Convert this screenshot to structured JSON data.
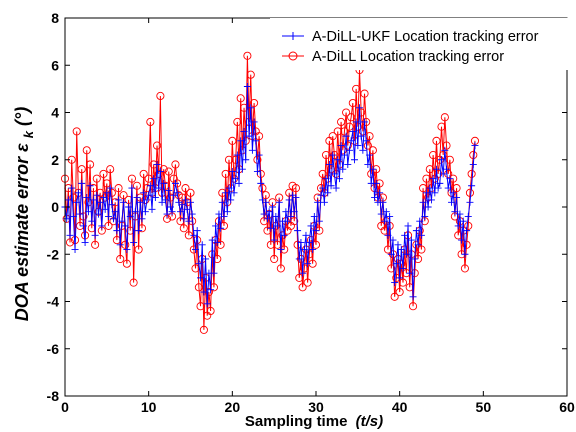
{
  "chart_data": {
    "type": "line",
    "xlabel": "Sampling time",
    "xlabel_unit": "(t/s)",
    "ylabel_main": "DOA estimate error ε",
    "ylabel_sub": "k",
    "ylabel_unit": "(°)",
    "xlim": [
      0,
      60
    ],
    "ylim": [
      -8,
      8
    ],
    "xticks": [
      "0",
      "10",
      "20",
      "30",
      "40",
      "50",
      "60"
    ],
    "yticks": [
      "-8",
      "-6",
      "-4",
      "-2",
      "0",
      "2",
      "4",
      "6",
      "8"
    ],
    "grid": false,
    "legend_position": "top-right",
    "x_step": 0.2,
    "x_start": 0,
    "series": [
      {
        "name": "A-DiLL-UKF Location tracking error",
        "color": "#0000ff",
        "marker": "plus",
        "values": [
          0.0,
          -0.5,
          0.3,
          -1.2,
          0.8,
          -0.4,
          -1.8,
          0.2,
          0.6,
          -0.3,
          1.0,
          -0.8,
          -1.5,
          0.4,
          -0.2,
          0.9,
          -0.6,
          0.3,
          -1.2,
          0.5,
          -0.3,
          0.2,
          -0.8,
          0.4,
          -0.1,
          0.6,
          -0.4,
          0.8,
          0.1,
          -0.5,
          -0.2,
          -1.0,
          0.3,
          -1.6,
          -0.6,
          0.2,
          -0.8,
          -1.8,
          0.0,
          -0.4,
          0.8,
          -1.5,
          -0.2,
          0.4,
          -1.0,
          0.2,
          -0.5,
          0.6,
          -0.2,
          0.3,
          0.5,
          0.9,
          -0.1,
          1.2,
          0.4,
          1.8,
          0.8,
          1.5,
          0.2,
          1.0,
          0.3,
          -0.3,
          0.7,
          0.0,
          -0.2,
          0.5,
          1.0,
          0.6,
          0.2,
          -0.2,
          0.1,
          -0.5,
          0.3,
          -0.1,
          -0.6,
          0.2,
          -0.3,
          -1.2,
          -1.8,
          -1.0,
          -2.4,
          -3.0,
          -1.6,
          -3.6,
          -2.2,
          -4.1,
          -2.8,
          -3.5,
          -1.4,
          -2.8,
          -0.8,
          -1.5,
          -0.3,
          -0.9,
          0.2,
          -0.4,
          0.6,
          -0.2,
          0.8,
          0.3,
          1.5,
          0.6,
          1.2,
          2.2,
          1.0,
          2.8,
          1.6,
          3.2,
          2.0,
          5.1,
          3.0,
          4.2,
          2.4,
          3.6,
          2.8,
          1.5,
          2.2,
          1.0,
          0.3,
          -0.3,
          0.2,
          -0.5,
          -0.2,
          -0.9,
          0.0,
          -1.4,
          -0.4,
          -0.8,
          0.2,
          -1.8,
          -0.6,
          -1.2,
          -0.2,
          -0.6,
          0.3,
          -0.4,
          0.5,
          -0.2,
          0.4,
          -1.0,
          -2.2,
          -1.5,
          -2.8,
          -1.8,
          -1.2,
          -2.4,
          -1.5,
          -0.8,
          -1.8,
          -0.4,
          -1.0,
          0.2,
          -0.6,
          0.5,
          0.8,
          0.2,
          1.2,
          0.6,
          1.8,
          0.9,
          2.2,
          1.4,
          0.8,
          2.0,
          1.2,
          2.6,
          1.6,
          2.2,
          3.0,
          1.8,
          2.4,
          2.8,
          3.2,
          2.0,
          3.6,
          2.6,
          4.2,
          3.0,
          2.4,
          3.6,
          2.8,
          1.8,
          2.2,
          1.0,
          1.6,
          0.4,
          1.0,
          0.2,
          0.6,
          -0.3,
          0.2,
          -0.6,
          -0.2,
          -1.2,
          -0.4,
          -2.0,
          -1.4,
          -3.2,
          -2.4,
          -1.6,
          -3.0,
          -1.8,
          -2.6,
          -1.2,
          -2.0,
          -0.8,
          -2.8,
          -1.4,
          -3.8,
          -2.2,
          -1.0,
          -1.6,
          -0.6,
          -1.2,
          0.2,
          -0.4,
          0.6,
          0.0,
          0.8,
          0.3,
          1.2,
          0.6,
          1.6,
          0.8,
          1.0,
          2.0,
          1.4,
          2.4,
          1.6,
          0.8,
          1.2,
          0.2,
          0.6,
          -0.2,
          0.4,
          -0.8,
          -0.3,
          -1.4,
          -0.6,
          -2.0,
          -1.0,
          -0.4,
          0.2,
          0.9,
          1.8,
          2.6
        ]
      },
      {
        "name": "A-DiLL Location tracking error",
        "color": "#ff0000",
        "marker": "circle",
        "values": [
          1.2,
          -0.5,
          0.8,
          -1.5,
          2.0,
          0.4,
          -1.4,
          3.2,
          0.6,
          -0.8,
          1.6,
          -0.4,
          -1.2,
          2.4,
          0.2,
          1.8,
          -0.9,
          0.8,
          -1.6,
          1.2,
          -0.2,
          0.6,
          -1.0,
          1.4,
          0.4,
          1.0,
          -0.8,
          1.6,
          0.6,
          -0.6,
          0.2,
          -1.4,
          0.8,
          -2.2,
          -0.8,
          0.5,
          -1.6,
          -2.4,
          0.3,
          -1.0,
          1.2,
          -3.2,
          -0.4,
          0.9,
          -1.8,
          0.4,
          -0.9,
          1.4,
          0.3,
          0.8,
          1.2,
          3.6,
          0.6,
          1.8,
          0.8,
          2.6,
          1.4,
          4.7,
          0.6,
          1.6,
          0.9,
          -0.5,
          1.5,
          0.4,
          -0.4,
          1.2,
          1.8,
          1.0,
          0.5,
          -0.6,
          0.4,
          -0.9,
          0.8,
          0.2,
          -1.2,
          0.6,
          -0.6,
          -1.8,
          -2.6,
          -1.4,
          -3.4,
          -4.2,
          -2.2,
          -5.2,
          -3.0,
          -4.6,
          -3.6,
          -4.4,
          -2.0,
          -3.4,
          -1.4,
          -2.2,
          -0.6,
          -1.6,
          0.6,
          -0.8,
          1.4,
          0.2,
          2.0,
          0.8,
          2.8,
          1.2,
          2.0,
          3.6,
          1.6,
          4.6,
          2.4,
          4.2,
          2.8,
          6.4,
          3.6,
          5.6,
          3.0,
          4.4,
          3.2,
          2.0,
          3.0,
          1.4,
          0.8,
          -0.6,
          0.5,
          -1.0,
          -0.3,
          -1.6,
          0.2,
          -2.2,
          -0.8,
          -1.6,
          0.4,
          -2.6,
          -1.2,
          -1.8,
          -0.6,
          -1.0,
          0.6,
          -0.8,
          0.9,
          -0.6,
          0.8,
          -1.6,
          -3.0,
          -2.2,
          -3.4,
          -2.6,
          -1.8,
          -3.2,
          -2.0,
          -1.4,
          -2.4,
          -0.8,
          -1.6,
          0.4,
          -1.0,
          0.8,
          1.4,
          0.6,
          2.2,
          1.2,
          2.8,
          1.6,
          3.0,
          2.2,
          1.4,
          3.2,
          1.8,
          3.6,
          2.4,
          3.2,
          4.0,
          2.6,
          3.4,
          3.8,
          4.4,
          2.8,
          5.0,
          3.4,
          5.8,
          4.0,
          3.2,
          4.8,
          3.6,
          2.6,
          3.0,
          1.4,
          2.4,
          0.8,
          1.6,
          0.4,
          1.0,
          -0.8,
          0.4,
          -1.0,
          -0.6,
          -1.8,
          -0.8,
          -2.6,
          -2.0,
          -3.8,
          -3.0,
          -2.2,
          -3.6,
          -2.4,
          -3.2,
          -1.8,
          -2.8,
          -1.2,
          -3.4,
          -2.0,
          -4.2,
          -2.8,
          -1.6,
          -2.2,
          -1.0,
          -1.8,
          0.8,
          -0.6,
          1.2,
          0.4,
          1.6,
          0.8,
          2.2,
          1.2,
          2.8,
          1.4,
          2.0,
          3.4,
          2.2,
          3.8,
          2.6,
          1.4,
          2.0,
          0.6,
          1.2,
          -0.4,
          0.8,
          -1.2,
          -0.6,
          -2.0,
          -1.0,
          -2.6,
          -1.6,
          -0.8,
          0.6,
          1.4,
          2.2,
          2.8
        ]
      }
    ]
  }
}
